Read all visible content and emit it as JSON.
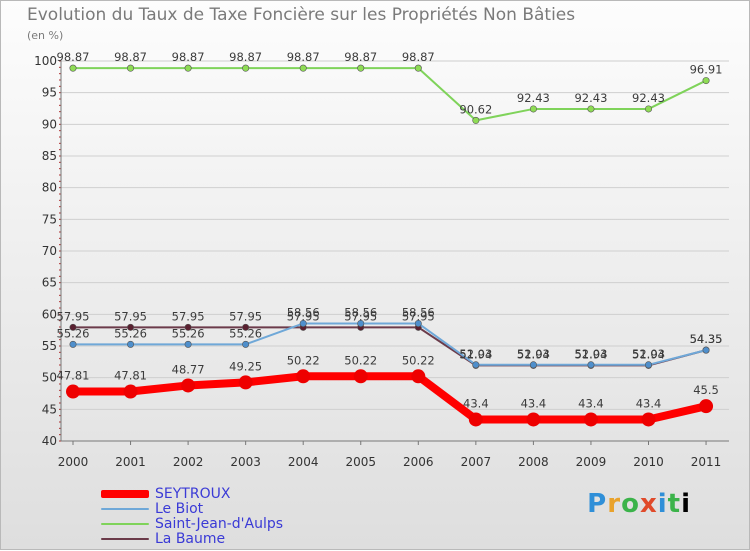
{
  "chart_data": {
    "type": "line",
    "title": "Evolution du Taux de Taxe Foncière sur les Propriétés Non Bâties",
    "unit_label": "(en %)",
    "xlabel": "",
    "ylabel": "",
    "ylim": [
      40,
      100
    ],
    "yticks": [
      40,
      45,
      50,
      55,
      60,
      65,
      70,
      75,
      80,
      85,
      90,
      95,
      100
    ],
    "categories": [
      "2000",
      "2001",
      "2002",
      "2003",
      "2004",
      "2005",
      "2006",
      "2007",
      "2008",
      "2009",
      "2010",
      "2011"
    ],
    "grid": true,
    "legend_position": "bottom-left",
    "series": [
      {
        "name": "Saint-Jean-d'Aulps",
        "color": "#7fd35a",
        "point_color": "#8fdc55",
        "thick": false,
        "values": [
          98.87,
          98.87,
          98.87,
          98.87,
          98.87,
          98.87,
          98.87,
          90.62,
          92.43,
          92.43,
          92.43,
          96.91
        ],
        "labels": [
          "98.87",
          "98.87",
          "98.87",
          "98.87",
          "98.87",
          "98.87",
          "98.87",
          "90.62",
          "92.43",
          "92.43",
          "92.43",
          "96.91"
        ]
      },
      {
        "name": "La Baume",
        "color": "#6b3b4a",
        "point_color": "#5a2030",
        "thick": false,
        "values": [
          57.95,
          57.95,
          57.95,
          57.95,
          57.95,
          57.95,
          57.95,
          51.94,
          51.94,
          51.94,
          51.94,
          54.35
        ],
        "labels": [
          "57.95",
          "57.95",
          "57.95",
          "57.95",
          "57.95",
          "57.95",
          "57.95",
          "51.94",
          "51.94",
          "51.94",
          "51.94",
          "54.35"
        ]
      },
      {
        "name": "Le Biot",
        "color": "#6fa8d8",
        "point_color": "#4f8fcc",
        "thick": false,
        "values": [
          55.26,
          55.26,
          55.26,
          55.26,
          58.56,
          58.56,
          58.56,
          52.03,
          52.03,
          52.03,
          52.03,
          54.35
        ],
        "labels": [
          "55.26",
          "55.26",
          "55.26",
          "55.26",
          "58.56",
          "58.56",
          "58.56",
          "52.03",
          "52.03",
          "52.03",
          "52.03",
          "54.35"
        ]
      },
      {
        "name": "SEYTROUX",
        "color": "#ff0000",
        "point_color": "#ee0000",
        "thick": true,
        "values": [
          47.81,
          47.81,
          48.77,
          49.25,
          50.22,
          50.22,
          50.22,
          43.4,
          43.4,
          43.4,
          43.4,
          45.5
        ],
        "labels": [
          "47.81",
          "47.81",
          "48.77",
          "49.25",
          "50.22",
          "50.22",
          "50.22",
          "43.4",
          "43.4",
          "43.4",
          "43.4",
          "45.5"
        ]
      }
    ],
    "legend": [
      {
        "name": "SEYTROUX",
        "color": "#ff0000",
        "thick": true
      },
      {
        "name": "Le Biot",
        "color": "#6fa8d8",
        "thick": false
      },
      {
        "name": "Saint-Jean-d'Aulps",
        "color": "#7fd35a",
        "thick": false
      },
      {
        "name": "La Baume",
        "color": "#6b3b4a",
        "thick": false
      }
    ]
  },
  "brand": {
    "letters": [
      "P",
      "r",
      "o",
      "x",
      "i",
      "t",
      "i"
    ]
  }
}
